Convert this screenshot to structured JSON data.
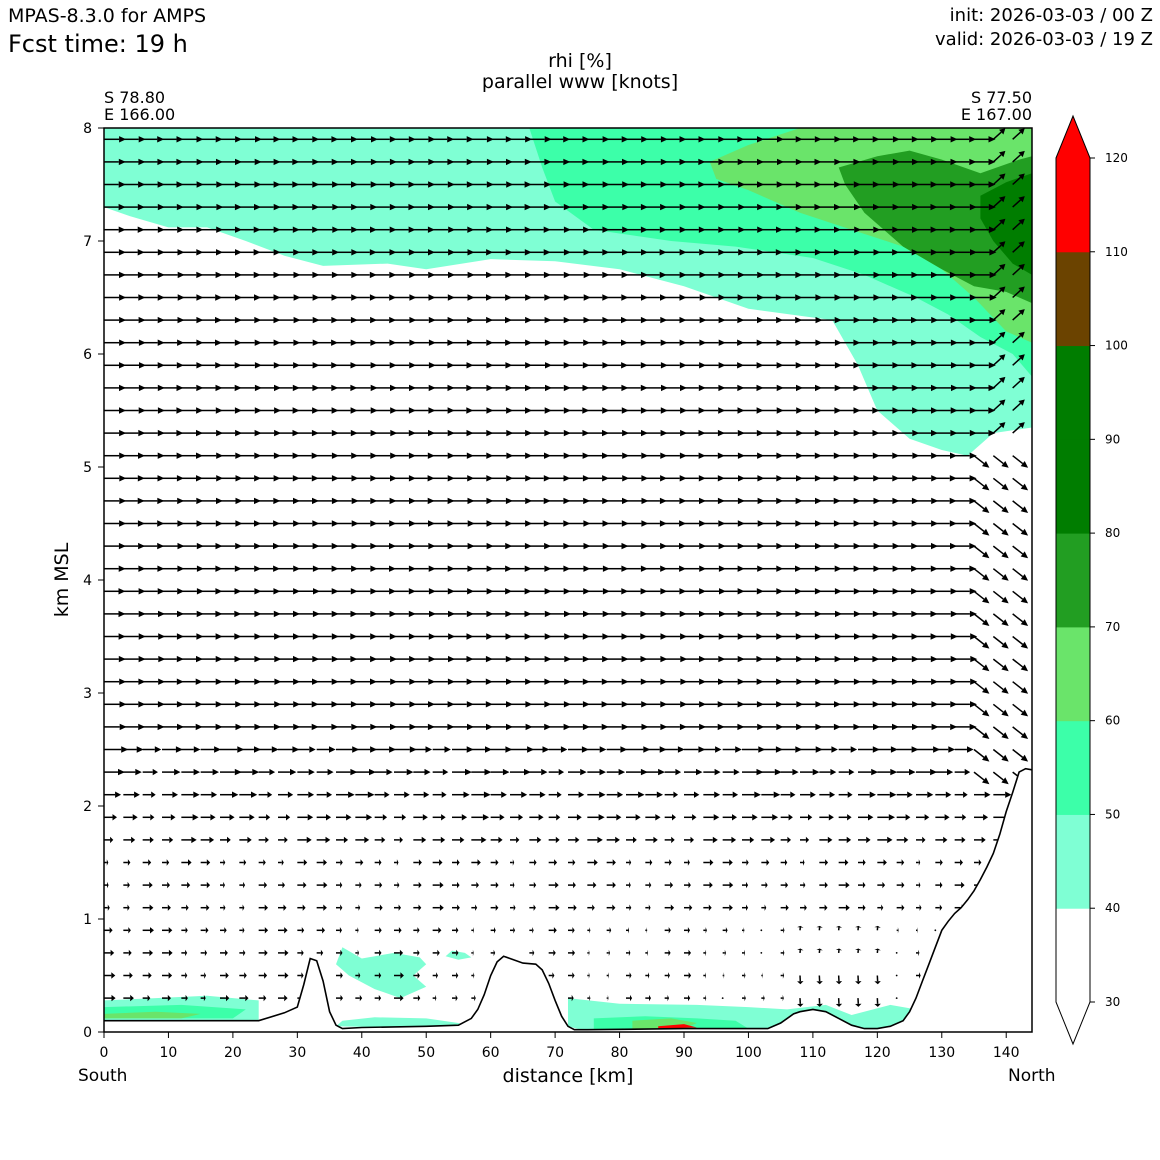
{
  "header": {
    "model": "MPAS-8.3.0 for AMPS",
    "fcst_label": "Fcst time:   19 h",
    "init": "init: 2026-03-03 / 00 Z",
    "valid": "valid: 2026-03-03 / 19 Z"
  },
  "endpoints": {
    "left_lat": "S 78.80",
    "left_lon": "E 166.00",
    "right_lat": "S 77.50",
    "right_lon": "E 167.00",
    "left_dir": "South",
    "right_dir": "North"
  },
  "chart_data": {
    "type": "cross-section",
    "title": "rhi [%]",
    "subtitle": "parallel www [knots]",
    "xlabel": "distance [km]",
    "ylabel": "km MSL",
    "xlim": [
      0,
      144
    ],
    "ylim": [
      0,
      8
    ],
    "xticks": [
      0,
      10,
      20,
      30,
      40,
      50,
      60,
      70,
      80,
      90,
      100,
      110,
      120,
      130,
      140
    ],
    "yticks": [
      0,
      1,
      2,
      3,
      4,
      5,
      6,
      7,
      8
    ],
    "colorbar": {
      "levels": [
        30,
        40,
        50,
        60,
        70,
        80,
        90,
        100,
        110,
        120
      ],
      "colors": [
        "#ffffff",
        "#7fffd4",
        "#3cffa9",
        "#6ae46a",
        "#229e22",
        "#007d00",
        "#007d00",
        "#6b4300",
        "#ff0000"
      ],
      "extend": "both",
      "extend_low_color": "#ffffff",
      "extend_high_color": "#ff0000"
    },
    "terrain": {
      "x": [
        0,
        24,
        28,
        30,
        31,
        32,
        33,
        34,
        35,
        36,
        37,
        40,
        50,
        55,
        57,
        58,
        59,
        60,
        61,
        62,
        63,
        65,
        67,
        68,
        69,
        70,
        71,
        72,
        73,
        75,
        90,
        103,
        105,
        107,
        108,
        110,
        112,
        114,
        116,
        118,
        120,
        122,
        124,
        125,
        126,
        127,
        128,
        129,
        130,
        131,
        132,
        133,
        134,
        135,
        136,
        137,
        138,
        139,
        140,
        141,
        142,
        143,
        144
      ],
      "y": [
        0.1,
        0.1,
        0.17,
        0.22,
        0.42,
        0.65,
        0.63,
        0.45,
        0.18,
        0.06,
        0.03,
        0.04,
        0.05,
        0.06,
        0.12,
        0.2,
        0.33,
        0.5,
        0.62,
        0.67,
        0.65,
        0.61,
        0.6,
        0.55,
        0.43,
        0.28,
        0.14,
        0.05,
        0.02,
        0.02,
        0.03,
        0.03,
        0.08,
        0.16,
        0.18,
        0.2,
        0.18,
        0.12,
        0.06,
        0.03,
        0.03,
        0.05,
        0.1,
        0.18,
        0.3,
        0.45,
        0.6,
        0.75,
        0.9,
        0.98,
        1.05,
        1.1,
        1.17,
        1.25,
        1.35,
        1.46,
        1.58,
        1.75,
        1.95,
        2.12,
        2.3,
        2.33,
        2.32
      ]
    },
    "rhi_regions": [
      {
        "level": 40,
        "points": [
          [
            0,
            8
          ],
          [
            144,
            8
          ],
          [
            144,
            5.35
          ],
          [
            138,
            5.3
          ],
          [
            134,
            5.1
          ],
          [
            130,
            5.15
          ],
          [
            125,
            5.25
          ],
          [
            120,
            5.5
          ],
          [
            117,
            5.9
          ],
          [
            113,
            6.3
          ],
          [
            100,
            6.4
          ],
          [
            90,
            6.6
          ],
          [
            80,
            6.75
          ],
          [
            70,
            6.82
          ],
          [
            60,
            6.84
          ],
          [
            50,
            6.75
          ],
          [
            44,
            6.8
          ],
          [
            34,
            6.78
          ],
          [
            28,
            6.87
          ],
          [
            22,
            7.0
          ],
          [
            16,
            7.12
          ],
          [
            10,
            7.12
          ],
          [
            4,
            7.22
          ],
          [
            0,
            7.3
          ]
        ]
      },
      {
        "level": 50,
        "points": [
          [
            66,
            8
          ],
          [
            144,
            8
          ],
          [
            144,
            5.8
          ],
          [
            141,
            6.0
          ],
          [
            136,
            6.15
          ],
          [
            131,
            6.35
          ],
          [
            126,
            6.5
          ],
          [
            118,
            6.7
          ],
          [
            110,
            6.85
          ],
          [
            98,
            6.95
          ],
          [
            88,
            7.0
          ],
          [
            76,
            7.1
          ],
          [
            70,
            7.35
          ],
          [
            68,
            7.65
          ]
        ]
      },
      {
        "level": 60,
        "points": [
          [
            94,
            7.7
          ],
          [
            100,
            7.85
          ],
          [
            108,
            8
          ],
          [
            144,
            8
          ],
          [
            144,
            6.1
          ],
          [
            140,
            6.2
          ],
          [
            135,
            6.5
          ],
          [
            130,
            6.75
          ],
          [
            124,
            6.95
          ],
          [
            116,
            7.1
          ],
          [
            108,
            7.25
          ],
          [
            100,
            7.45
          ],
          [
            95,
            7.55
          ]
        ]
      },
      {
        "level": 70,
        "points": [
          [
            114,
            7.65
          ],
          [
            120,
            7.75
          ],
          [
            125,
            7.8
          ],
          [
            130,
            7.72
          ],
          [
            136,
            7.6
          ],
          [
            142,
            7.72
          ],
          [
            144,
            7.75
          ],
          [
            144,
            6.45
          ],
          [
            140,
            6.55
          ],
          [
            135,
            6.6
          ],
          [
            130,
            6.75
          ],
          [
            124,
            6.95
          ],
          [
            118,
            7.25
          ],
          [
            115,
            7.5
          ]
        ]
      },
      {
        "level": 80,
        "points": [
          [
            136,
            7.4
          ],
          [
            140,
            7.52
          ],
          [
            144,
            7.6
          ],
          [
            144,
            6.7
          ],
          [
            141,
            6.8
          ],
          [
            138,
            7.0
          ],
          [
            136,
            7.2
          ]
        ]
      },
      {
        "level": 40,
        "points": [
          [
            0,
            0.28
          ],
          [
            8,
            0.3
          ],
          [
            16,
            0.32
          ],
          [
            24,
            0.28
          ],
          [
            24,
            0.1
          ],
          [
            0,
            0.1
          ]
        ]
      },
      {
        "level": 50,
        "points": [
          [
            0,
            0.22
          ],
          [
            12,
            0.24
          ],
          [
            22,
            0.2
          ],
          [
            20,
            0.12
          ],
          [
            0,
            0.12
          ]
        ]
      },
      {
        "level": 60,
        "points": [
          [
            0,
            0.16
          ],
          [
            8,
            0.18
          ],
          [
            15,
            0.16
          ],
          [
            12,
            0.12
          ],
          [
            0,
            0.12
          ]
        ]
      },
      {
        "level": 40,
        "points": [
          [
            37,
            0.75
          ],
          [
            40,
            0.65
          ],
          [
            45,
            0.7
          ],
          [
            49,
            0.66
          ],
          [
            50,
            0.6
          ],
          [
            48,
            0.5
          ],
          [
            50,
            0.4
          ],
          [
            46,
            0.3
          ],
          [
            42,
            0.38
          ],
          [
            38,
            0.5
          ],
          [
            36,
            0.6
          ]
        ]
      },
      {
        "level": 40,
        "points": [
          [
            54,
            0.72
          ],
          [
            56,
            0.7
          ],
          [
            57,
            0.66
          ],
          [
            55,
            0.64
          ],
          [
            53,
            0.67
          ]
        ]
      },
      {
        "level": 40,
        "points": [
          [
            36,
            0.05
          ],
          [
            37,
            0.1
          ],
          [
            42,
            0.13
          ],
          [
            50,
            0.12
          ],
          [
            55,
            0.08
          ],
          [
            56,
            0.06
          ],
          [
            45,
            0.04
          ]
        ]
      },
      {
        "level": 40,
        "points": [
          [
            72,
            0.3
          ],
          [
            80,
            0.25
          ],
          [
            92,
            0.24
          ],
          [
            100,
            0.22
          ],
          [
            106,
            0.2
          ],
          [
            112,
            0.24
          ],
          [
            116,
            0.15
          ],
          [
            122,
            0.24
          ],
          [
            126,
            0.2
          ],
          [
            125,
            0.04
          ],
          [
            115,
            0.03
          ],
          [
            100,
            0.03
          ],
          [
            74,
            0.02
          ],
          [
            72,
            0.05
          ]
        ]
      },
      {
        "level": 50,
        "points": [
          [
            76,
            0.12
          ],
          [
            84,
            0.14
          ],
          [
            92,
            0.12
          ],
          [
            98,
            0.1
          ],
          [
            100,
            0.03
          ],
          [
            76,
            0.02
          ]
        ]
      },
      {
        "level": 60,
        "points": [
          [
            82,
            0.1
          ],
          [
            88,
            0.12
          ],
          [
            92,
            0.08
          ],
          [
            90,
            0.03
          ],
          [
            82,
            0.03
          ]
        ]
      },
      {
        "level": 110,
        "points": [
          [
            86,
            0.05
          ],
          [
            90,
            0.07
          ],
          [
            92,
            0.04
          ],
          [
            86,
            0.03
          ]
        ]
      }
    ],
    "wind_vectors": {
      "x_grid": [
        0,
        3,
        6,
        9,
        12,
        15,
        18,
        21,
        24,
        27,
        30,
        33,
        36,
        39,
        42,
        45,
        48,
        51,
        54,
        57,
        60,
        63,
        66,
        69,
        72,
        75,
        78,
        81,
        84,
        87,
        90,
        93,
        96,
        99,
        102,
        105,
        108,
        111,
        114,
        117,
        120,
        123,
        126,
        129,
        132,
        135,
        138,
        141
      ],
      "y_grid": [
        0.3,
        0.5,
        0.7,
        0.9,
        1.1,
        1.3,
        1.5,
        1.7,
        1.9,
        2.1,
        2.3,
        2.5,
        2.7,
        2.9,
        3.1,
        3.3,
        3.5,
        3.7,
        3.9,
        4.1,
        4.3,
        4.5,
        4.7,
        4.9,
        5.1,
        5.3,
        5.5,
        5.7,
        5.9,
        6.1,
        6.3,
        6.5,
        6.7,
        6.9,
        7.1,
        7.3,
        7.5,
        7.7,
        7.9
      ],
      "description": "eastward (northbound) flow aloft, weak below 1.5 km, turning downslope near the northern ridge"
    }
  }
}
